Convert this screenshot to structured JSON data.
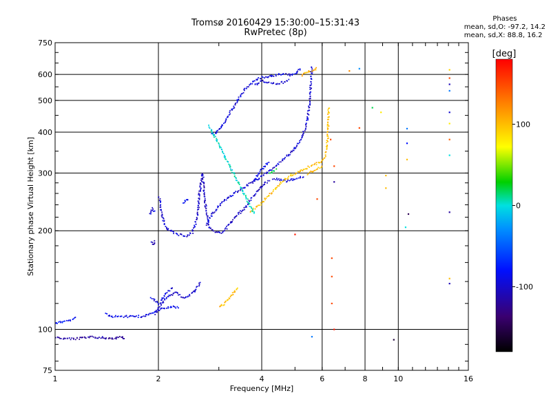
{
  "chart_data": {
    "type": "scatter",
    "title_line1": "Tromsø 20160429 15:30:00–15:31:43",
    "title_line2": "RwPretec (8p)",
    "xlabel": "Frequency [MHz]",
    "ylabel": "Stationary phase Virtual Height [km]",
    "x_scale": "log",
    "y_scale": "log",
    "xlim": [
      1,
      16
    ],
    "ylim": [
      75,
      750
    ],
    "x_ticks": [
      1,
      2,
      4,
      6,
      8,
      10,
      16
    ],
    "y_ticks": [
      75,
      100,
      200,
      300,
      400,
      500,
      600,
      750
    ],
    "grid": true,
    "phase_stats": {
      "header": "Phases",
      "o_line": "mean, sd,O:  -97.2, 14.2",
      "x_line": "mean, sd,X:  88.8, 16.2"
    },
    "colorbar": {
      "label": "[deg]",
      "ticks": [
        100,
        0,
        -100
      ],
      "range": [
        -180,
        180
      ]
    },
    "segments": [
      {
        "phase": -80,
        "points": [
          [
            1.0,
            105
          ],
          [
            1.05,
            106
          ],
          [
            1.1,
            107
          ],
          [
            1.15,
            109
          ]
        ]
      },
      {
        "phase": -120,
        "points": [
          [
            1.0,
            95
          ],
          [
            1.08,
            94
          ],
          [
            1.15,
            94
          ],
          [
            1.25,
            95
          ],
          [
            1.35,
            95
          ],
          [
            1.45,
            94
          ],
          [
            1.55,
            95
          ],
          [
            1.6,
            94
          ]
        ]
      },
      {
        "phase": -90,
        "points": [
          [
            1.4,
            112
          ],
          [
            1.45,
            110
          ],
          [
            1.55,
            110
          ],
          [
            1.7,
            110
          ],
          [
            1.8,
            110
          ],
          [
            1.9,
            112
          ],
          [
            2.0,
            115
          ],
          [
            2.1,
            117
          ],
          [
            2.2,
            118
          ],
          [
            2.3,
            117
          ]
        ]
      },
      {
        "phase": -100,
        "points": [
          [
            1.95,
            112
          ],
          [
            2.05,
            122
          ],
          [
            2.15,
            128
          ],
          [
            2.25,
            130
          ],
          [
            2.35,
            125
          ],
          [
            2.45,
            128
          ],
          [
            2.55,
            132
          ],
          [
            2.65,
            140
          ]
        ]
      },
      {
        "phase": -95,
        "points": [
          [
            1.9,
            125
          ],
          [
            2.0,
            120
          ],
          [
            2.1,
            130
          ],
          [
            2.2,
            135
          ]
        ]
      },
      {
        "phase": -110,
        "points": [
          [
            1.9,
            185
          ],
          [
            1.93,
            182
          ],
          [
            1.95,
            188
          ]
        ]
      },
      {
        "phase": -100,
        "points": [
          [
            2.0,
            255
          ],
          [
            2.02,
            240
          ],
          [
            2.05,
            220
          ],
          [
            2.1,
            205
          ],
          [
            2.2,
            198
          ],
          [
            2.3,
            195
          ],
          [
            2.4,
            194
          ],
          [
            2.5,
            198
          ],
          [
            2.55,
            210
          ],
          [
            2.6,
            230
          ]
        ]
      },
      {
        "phase": -95,
        "points": [
          [
            1.88,
            225
          ],
          [
            1.92,
            235
          ],
          [
            1.95,
            228
          ]
        ]
      },
      {
        "phase": -85,
        "points": [
          [
            2.35,
            245
          ],
          [
            2.4,
            250
          ],
          [
            2.45,
            248
          ]
        ]
      },
      {
        "phase": -105,
        "points": [
          [
            2.6,
            230
          ],
          [
            2.62,
            260
          ],
          [
            2.65,
            280
          ],
          [
            2.68,
            300
          ],
          [
            2.7,
            270
          ],
          [
            2.72,
            250
          ],
          [
            2.75,
            230
          ],
          [
            2.78,
            215
          ],
          [
            2.8,
            205
          ],
          [
            2.9,
            200
          ],
          [
            3.0,
            198
          ],
          [
            3.1,
            200
          ],
          [
            3.2,
            210
          ],
          [
            3.3,
            218
          ],
          [
            3.4,
            225
          ],
          [
            3.5,
            232
          ],
          [
            3.6,
            240
          ],
          [
            3.7,
            250
          ],
          [
            3.8,
            258
          ],
          [
            3.9,
            268
          ],
          [
            4.0,
            275
          ],
          [
            4.1,
            282
          ],
          [
            4.2,
            285
          ]
        ]
      },
      {
        "phase": -100,
        "points": [
          [
            2.75,
            210
          ],
          [
            2.85,
            225
          ],
          [
            3.0,
            240
          ],
          [
            3.2,
            255
          ],
          [
            3.4,
            265
          ],
          [
            3.6,
            275
          ],
          [
            3.8,
            285
          ],
          [
            4.0,
            295
          ],
          [
            4.2,
            305
          ],
          [
            4.4,
            318
          ],
          [
            4.6,
            330
          ],
          [
            4.8,
            345
          ],
          [
            5.0,
            360
          ],
          [
            5.2,
            385
          ],
          [
            5.4,
            430
          ],
          [
            5.5,
            500
          ],
          [
            5.55,
            580
          ],
          [
            5.58,
            640
          ]
        ]
      },
      {
        "phase": -95,
        "points": [
          [
            2.85,
            400
          ],
          [
            2.9,
            395
          ],
          [
            3.0,
            410
          ],
          [
            3.1,
            430
          ],
          [
            3.2,
            455
          ],
          [
            3.3,
            480
          ],
          [
            3.4,
            505
          ],
          [
            3.5,
            530
          ],
          [
            3.6,
            550
          ],
          [
            3.7,
            565
          ],
          [
            3.8,
            578
          ],
          [
            4.0,
            590
          ],
          [
            4.2,
            595
          ],
          [
            4.4,
            600
          ],
          [
            4.6,
            605
          ],
          [
            4.8,
            600
          ],
          [
            5.0,
            605
          ],
          [
            5.2,
            630
          ]
        ]
      },
      {
        "phase": -100,
        "points": [
          [
            3.8,
            560
          ],
          [
            4.0,
            575
          ],
          [
            4.2,
            570
          ],
          [
            4.4,
            565
          ],
          [
            4.6,
            570
          ],
          [
            4.8,
            580
          ]
        ]
      },
      {
        "phase": -90,
        "points": [
          [
            3.8,
            285
          ],
          [
            3.9,
            300
          ],
          [
            4.0,
            310
          ],
          [
            4.1,
            320
          ],
          [
            4.2,
            325
          ]
        ]
      },
      {
        "phase": -100,
        "points": [
          [
            4.3,
            290
          ],
          [
            4.5,
            288
          ],
          [
            4.7,
            285
          ],
          [
            4.9,
            288
          ],
          [
            5.1,
            292
          ],
          [
            5.3,
            295
          ]
        ]
      },
      {
        "phase": 100,
        "points": [
          [
            3.0,
            118
          ],
          [
            3.1,
            120
          ],
          [
            3.2,
            125
          ],
          [
            3.3,
            130
          ],
          [
            3.4,
            135
          ]
        ]
      },
      {
        "phase": 100,
        "points": [
          [
            3.7,
            230
          ],
          [
            3.8,
            235
          ],
          [
            3.9,
            240
          ],
          [
            4.0,
            245
          ],
          [
            4.1,
            252
          ],
          [
            4.2,
            258
          ],
          [
            4.3,
            265
          ],
          [
            4.4,
            272
          ],
          [
            4.5,
            280
          ],
          [
            4.7,
            290
          ],
          [
            4.9,
            298
          ],
          [
            5.1,
            305
          ],
          [
            5.3,
            310
          ],
          [
            5.5,
            315
          ],
          [
            5.7,
            320
          ],
          [
            5.9,
            325
          ],
          [
            6.0,
            330
          ],
          [
            6.1,
            340
          ],
          [
            6.15,
            360
          ],
          [
            6.2,
            380
          ],
          [
            6.22,
            420
          ],
          [
            6.25,
            480
          ]
        ]
      },
      {
        "phase": 100,
        "points": [
          [
            5.4,
            300
          ],
          [
            5.6,
            305
          ],
          [
            5.8,
            310
          ],
          [
            6.0,
            315
          ]
        ]
      },
      {
        "phase": 100,
        "points": [
          [
            5.2,
            600
          ],
          [
            5.4,
            610
          ],
          [
            5.6,
            620
          ],
          [
            5.8,
            630
          ]
        ]
      },
      {
        "phase": 0,
        "points": [
          [
            2.8,
            420
          ],
          [
            3.8,
            225
          ]
        ]
      },
      {
        "phase": 20,
        "points": [
          [
            4.2,
            300
          ],
          [
            4.4,
            310
          ]
        ]
      }
    ],
    "scatter_points": [
      {
        "x": 6.35,
        "y": 380,
        "phase": 150
      },
      {
        "x": 6.5,
        "y": 315,
        "phase": 150
      },
      {
        "x": 5.8,
        "y": 250,
        "phase": 150
      },
      {
        "x": 6.4,
        "y": 165,
        "phase": 150
      },
      {
        "x": 6.4,
        "y": 145,
        "phase": 150
      },
      {
        "x": 6.4,
        "y": 120,
        "phase": 150
      },
      {
        "x": 6.5,
        "y": 100,
        "phase": 170
      },
      {
        "x": 5.6,
        "y": 95,
        "phase": -40
      },
      {
        "x": 6.5,
        "y": 282,
        "phase": -120
      },
      {
        "x": 5.0,
        "y": 195,
        "phase": 170
      },
      {
        "x": 7.2,
        "y": 615,
        "phase": 120
      },
      {
        "x": 7.7,
        "y": 625,
        "phase": -30
      },
      {
        "x": 7.7,
        "y": 412,
        "phase": 150
      },
      {
        "x": 8.4,
        "y": 475,
        "phase": 20
      },
      {
        "x": 8.9,
        "y": 460,
        "phase": 80
      },
      {
        "x": 9.2,
        "y": 295,
        "phase": 100
      },
      {
        "x": 9.2,
        "y": 270,
        "phase": 100
      },
      {
        "x": 9.7,
        "y": 93,
        "phase": -160
      },
      {
        "x": 10.6,
        "y": 410,
        "phase": -40
      },
      {
        "x": 10.6,
        "y": 370,
        "phase": -80
      },
      {
        "x": 10.6,
        "y": 330,
        "phase": 100
      },
      {
        "x": 10.7,
        "y": 225,
        "phase": -150
      },
      {
        "x": 10.5,
        "y": 205,
        "phase": 0
      },
      {
        "x": 14.1,
        "y": 620,
        "phase": 90
      },
      {
        "x": 14.1,
        "y": 585,
        "phase": 150
      },
      {
        "x": 14.1,
        "y": 560,
        "phase": -110
      },
      {
        "x": 14.1,
        "y": 535,
        "phase": -40
      },
      {
        "x": 14.1,
        "y": 460,
        "phase": -100
      },
      {
        "x": 14.1,
        "y": 425,
        "phase": 80
      },
      {
        "x": 14.1,
        "y": 380,
        "phase": 140
      },
      {
        "x": 14.1,
        "y": 340,
        "phase": 0
      },
      {
        "x": 14.1,
        "y": 228,
        "phase": -120
      },
      {
        "x": 14.1,
        "y": 143,
        "phase": 100
      },
      {
        "x": 14.1,
        "y": 138,
        "phase": -110
      }
    ]
  }
}
